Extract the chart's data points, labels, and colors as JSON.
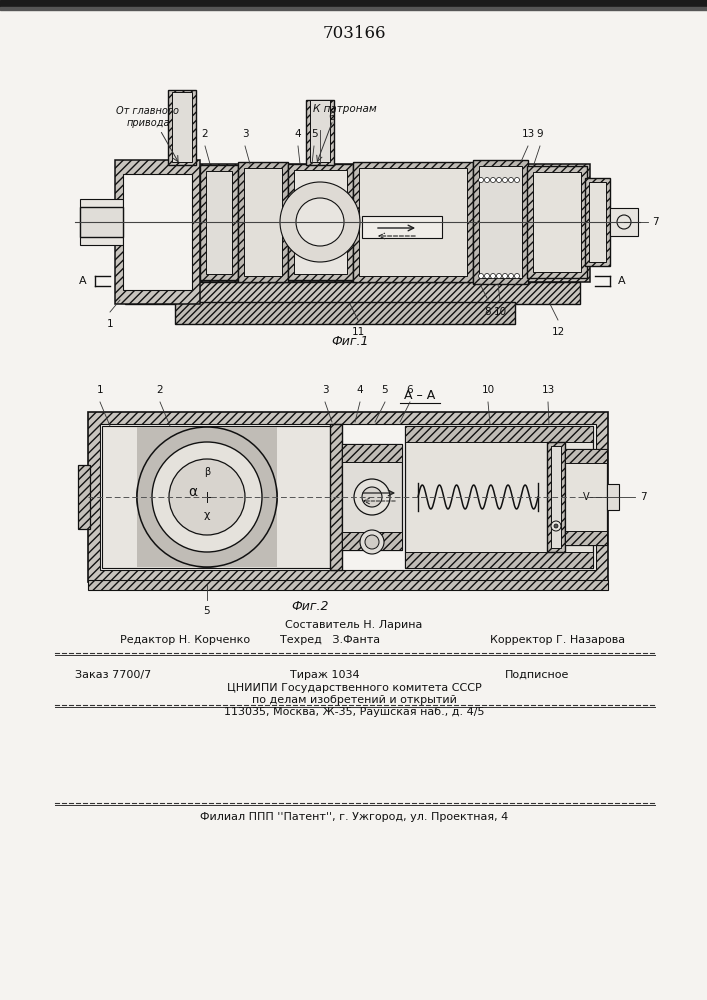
{
  "patent_number": "703166",
  "bg_color": "#f5f3f0",
  "line_color": "#111111",
  "hatch_color": "#555555",
  "fig1_caption": "Фиг.1",
  "fig2_caption": "Фиг.2",
  "fig2_section_label": "А – А",
  "label_k_patronam": "К патронам",
  "label_ot_glavnogo": "От главного\nпривода",
  "footer_composer": "Составитель Н. Ларина",
  "footer_editor": "Редактор Н. Корченко",
  "footer_tech": "Техред   З.Фанта",
  "footer_corrector": "Корректор Г. Назарова",
  "footer_order": "Заказ 7700/7",
  "footer_print": "Тираж 1034",
  "footer_sub": "Подписное",
  "footer_org1": "ЦНИИПИ Государственного комитета СССР",
  "footer_org2": "по делам изобретений и открытий",
  "footer_addr": "113035, Москва, Ж-35, Раушская наб., д. 4/5",
  "footer_branch": "Филиал ППП ''Патент'', г. Ужгород, ул. Проектная, 4"
}
